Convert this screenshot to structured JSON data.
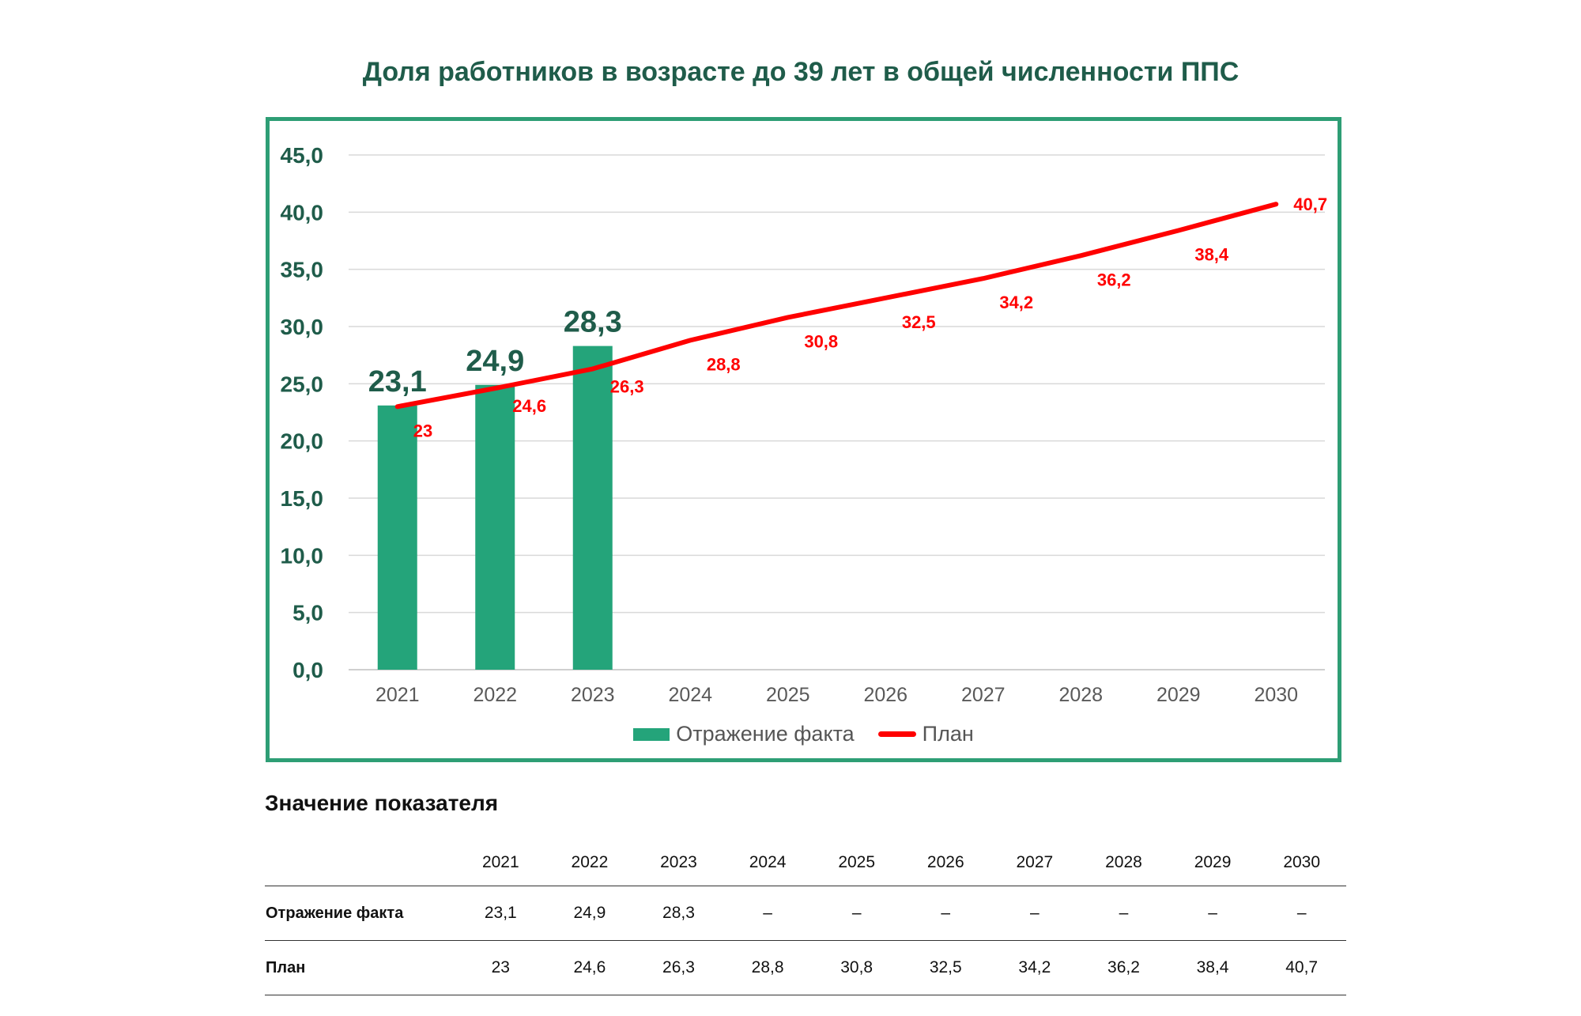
{
  "title": "Доля работников в возрасте до 39 лет в общей численности ППС",
  "chart_data": {
    "type": "bar+line",
    "categories": [
      "2021",
      "2022",
      "2023",
      "2024",
      "2025",
      "2026",
      "2027",
      "2028",
      "2029",
      "2030"
    ],
    "ylim": [
      0,
      45
    ],
    "yticks": [
      "0,0",
      "5,0",
      "10,0",
      "15,0",
      "20,0",
      "25,0",
      "30,0",
      "35,0",
      "40,0",
      "45,0"
    ],
    "grid": true,
    "legend_position": "bottom",
    "series": [
      {
        "name": "Отражение факта",
        "type": "bar",
        "color": "#24a47a",
        "values": [
          23.1,
          24.9,
          28.3,
          null,
          null,
          null,
          null,
          null,
          null,
          null
        ],
        "labels": [
          "23,1",
          "24,9",
          "28,3"
        ]
      },
      {
        "name": "План",
        "type": "line",
        "color": "#ff0000",
        "values": [
          23,
          24.6,
          26.3,
          28.8,
          30.8,
          32.5,
          34.2,
          36.2,
          38.4,
          40.7
        ],
        "labels": [
          "23",
          "24,6",
          "26,3",
          "28,8",
          "30,8",
          "32,5",
          "34,2",
          "36,2",
          "38,4",
          "40,7"
        ]
      }
    ]
  },
  "table": {
    "title": "Значение показателя",
    "years": [
      "2021",
      "2022",
      "2023",
      "2024",
      "2025",
      "2026",
      "2027",
      "2028",
      "2029",
      "2030"
    ],
    "rows": [
      {
        "label": "Отражение факта",
        "values": [
          "23,1",
          "24,9",
          "28,3",
          "–",
          "–",
          "–",
          "–",
          "–",
          "–",
          "–"
        ]
      },
      {
        "label": "План",
        "values": [
          "23",
          "24,6",
          "26,3",
          "28,8",
          "30,8",
          "32,5",
          "34,2",
          "36,2",
          "38,4",
          "40,7"
        ]
      }
    ]
  }
}
